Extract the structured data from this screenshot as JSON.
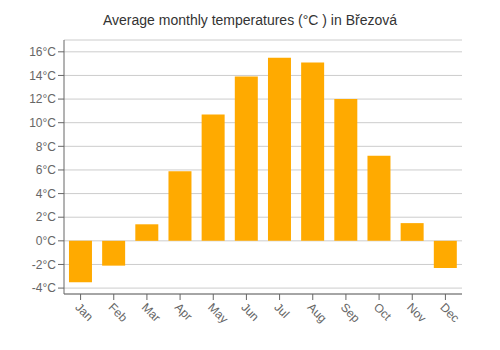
{
  "chart_data": {
    "type": "bar",
    "title": "Average monthly temperatures (°C ) in Březová",
    "categories": [
      "Jan",
      "Feb",
      "Mar",
      "Apr",
      "May",
      "Jun",
      "Jul",
      "Aug",
      "Sep",
      "Oct",
      "Nov",
      "Dec"
    ],
    "values": [
      -3.5,
      -2.1,
      1.4,
      5.9,
      10.7,
      13.9,
      15.5,
      15.1,
      12.0,
      7.2,
      1.5,
      -2.3
    ],
    "color": "#FFAA00",
    "ylim": [
      -4.5,
      17
    ],
    "yticks": [
      {
        "value": -4,
        "label": "-4°C"
      },
      {
        "value": -2,
        "label": "-2°C"
      },
      {
        "value": 0,
        "label": "0°C"
      },
      {
        "value": 2,
        "label": "2°C"
      },
      {
        "value": 4,
        "label": "4°C"
      },
      {
        "value": 6,
        "label": "6°C"
      },
      {
        "value": 8,
        "label": "8°C"
      },
      {
        "value": 10,
        "label": "10°C"
      },
      {
        "value": 12,
        "label": "12°C"
      },
      {
        "value": 14,
        "label": "14°C"
      },
      {
        "value": 16,
        "label": "16°C"
      }
    ],
    "grid": true
  }
}
